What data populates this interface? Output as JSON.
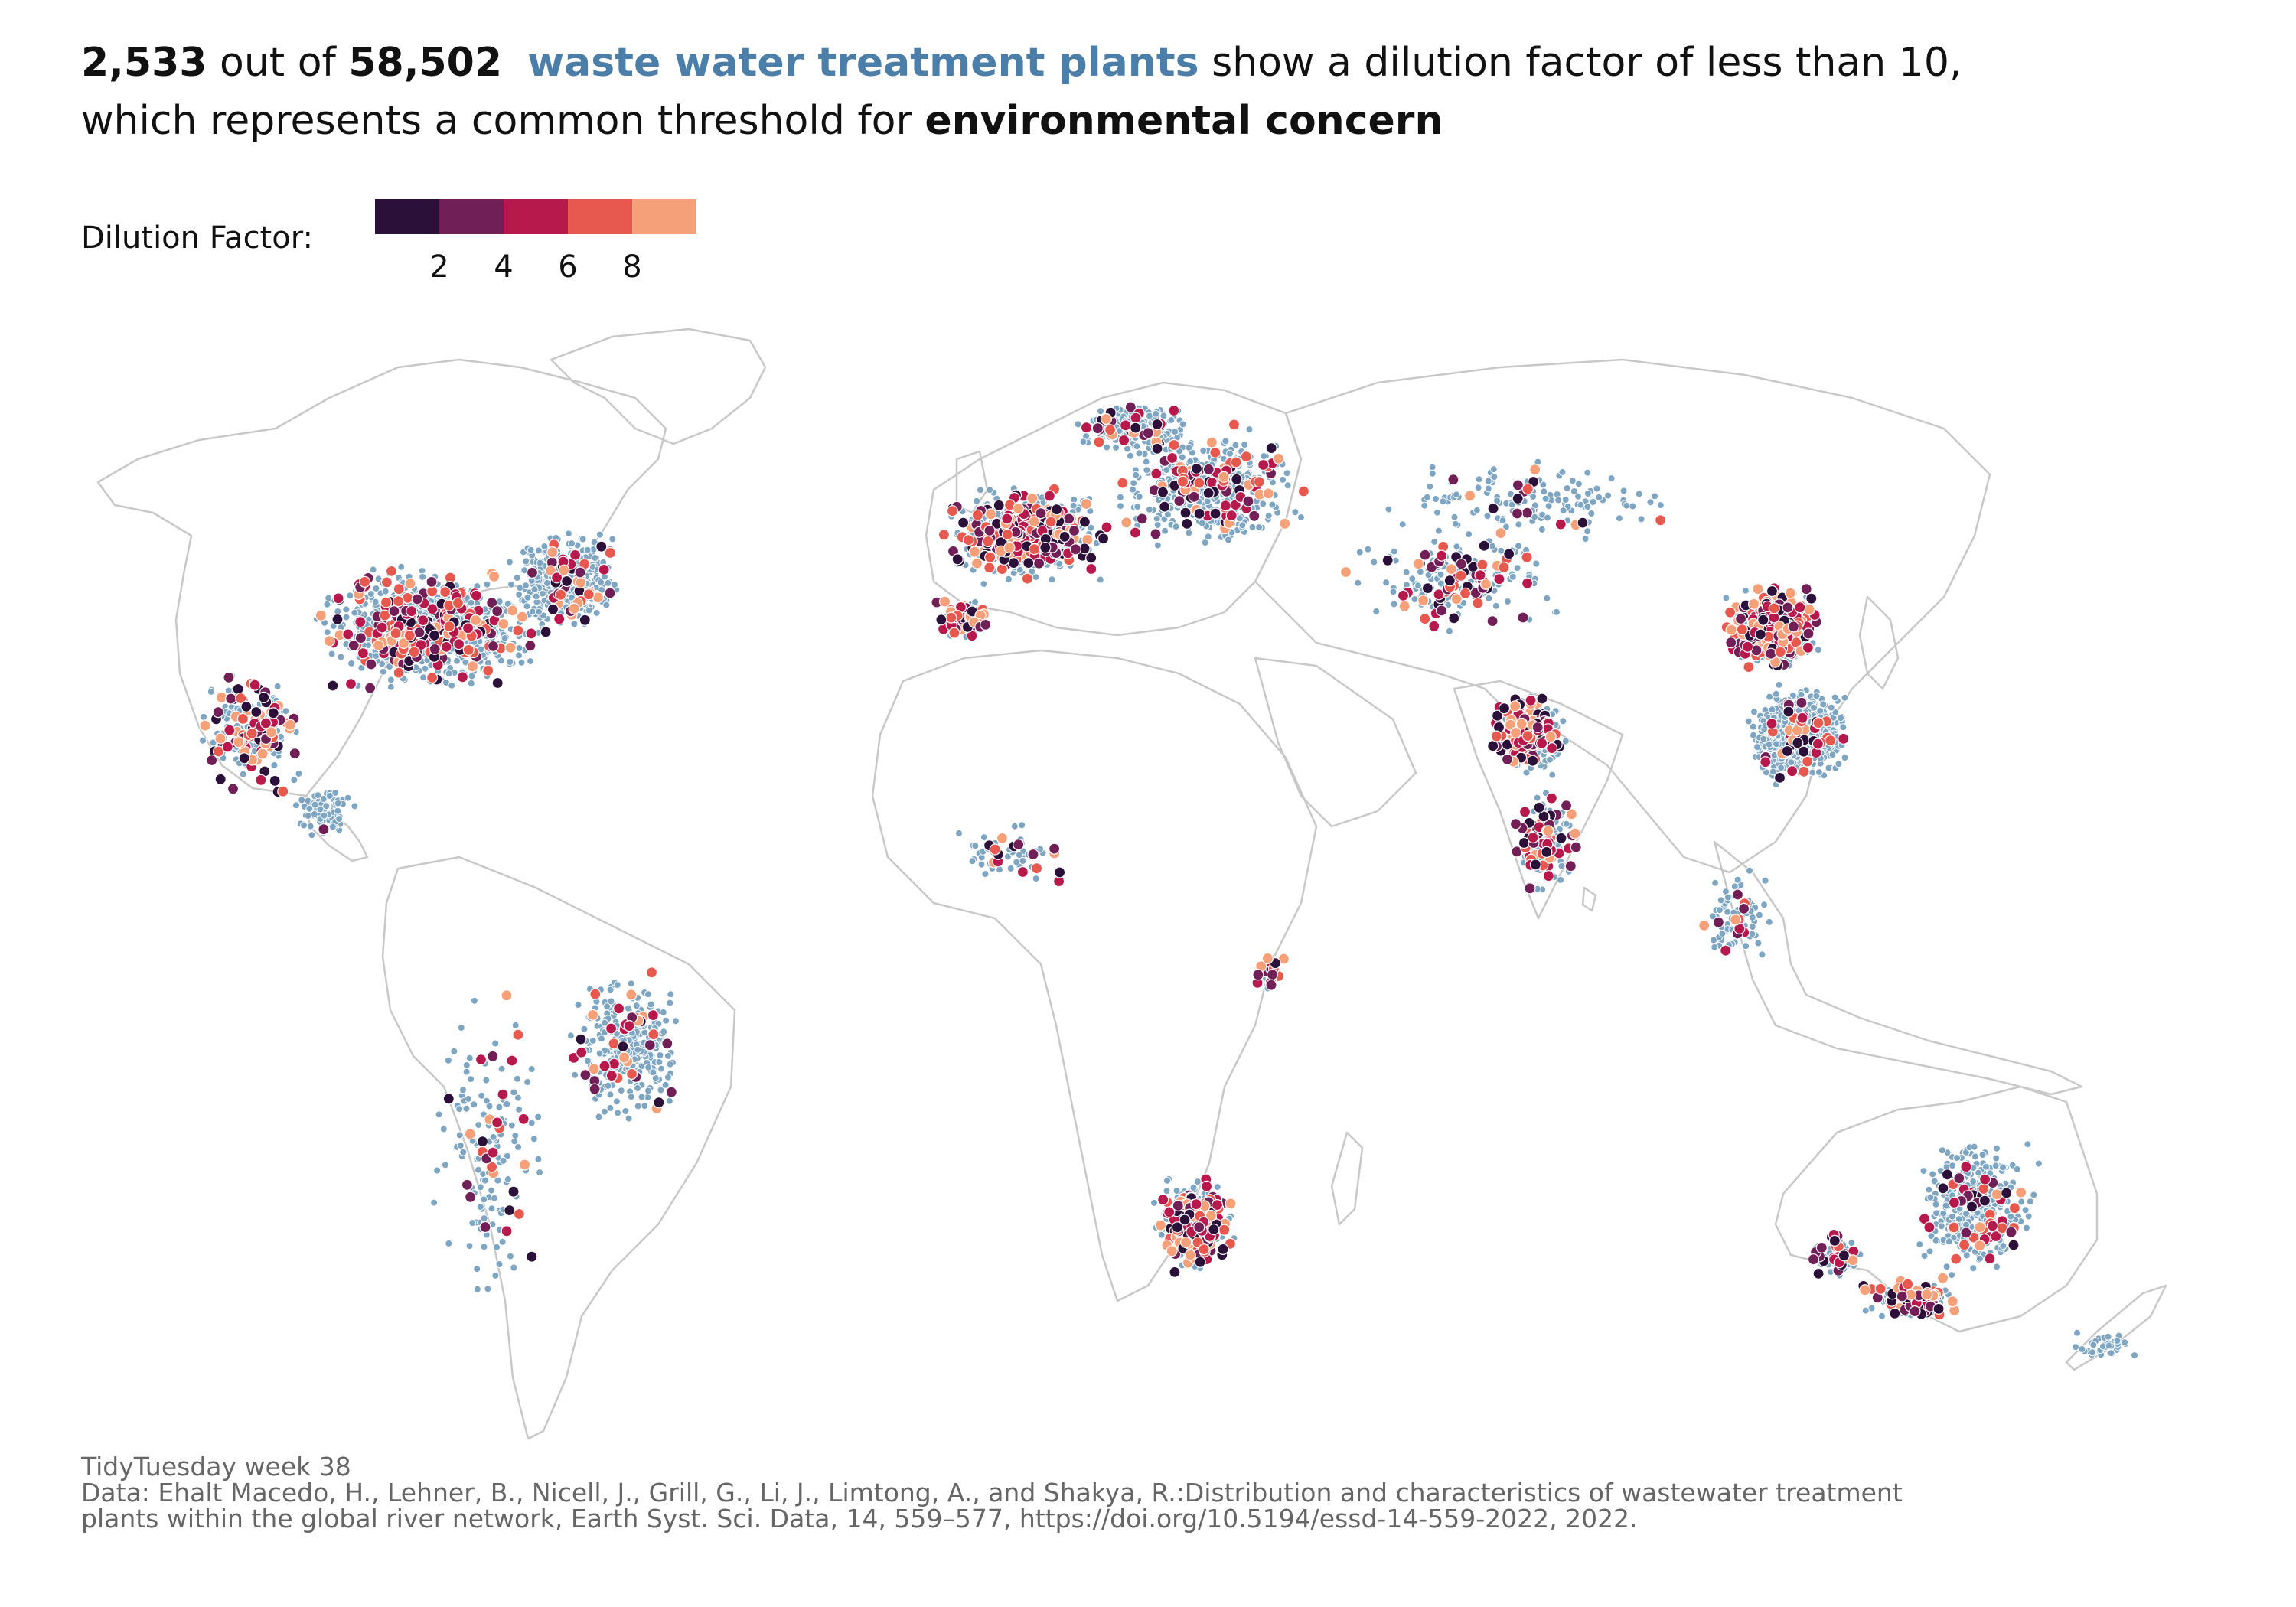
{
  "title": {
    "count": "2,533",
    "out_of": "out of",
    "total": "58,502",
    "highlight": "waste water treatment plants",
    "rest_line1": "show a dilution factor of less than 10,",
    "rest_line2": "which represents a common threshold for",
    "emphasis": "environmental concern"
  },
  "legend": {
    "label": "Dilution Factor:",
    "ticks": [
      "2",
      "4",
      "6",
      "8"
    ],
    "colors": [
      "#2b1139",
      "#711f57",
      "#b8194d",
      "#e7594e",
      "#f6a07a"
    ]
  },
  "caption": {
    "line1": "TidyTuesday week 38",
    "line2": "Data: Ehalt Macedo, H., Lehner, B., Nicell, J., Grill, G., Li, J., Limtong, A., and Shakya, R.:Distribution and characteristics of wastewater treatment",
    "line3": "plants within the global river network, Earth Syst. Sci. Data, 14, 559–577, https://doi.org/10.5194/essd-14-559-2022, 2022."
  },
  "map": {
    "background_point_color": "#7ea6c2",
    "land_outline_color": "#c8c8c8"
  }
}
